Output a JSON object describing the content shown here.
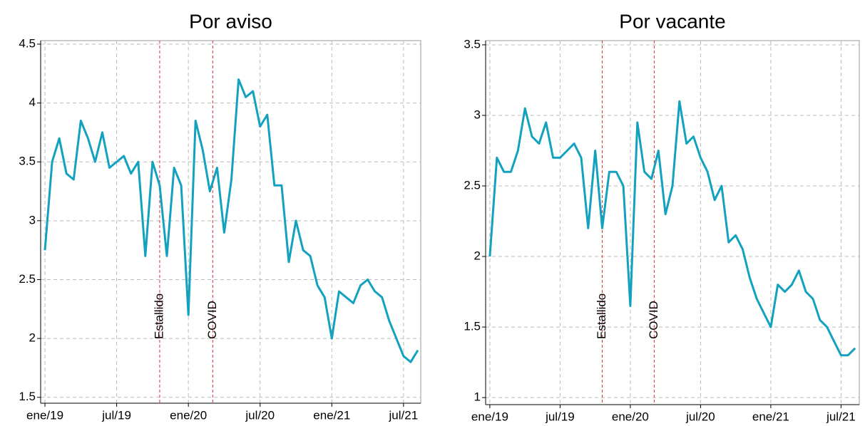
{
  "chart_data": [
    {
      "type": "line",
      "title": "Por aviso",
      "color": "#12a2bf",
      "grid": true,
      "x": [
        2019.0,
        2019.05,
        2019.1,
        2019.15,
        2019.2,
        2019.25,
        2019.3,
        2019.35,
        2019.4,
        2019.45,
        2019.5,
        2019.55,
        2019.6,
        2019.65,
        2019.7,
        2019.75,
        2019.8,
        2019.85,
        2019.9,
        2019.95,
        2020.0,
        2020.05,
        2020.1,
        2020.15,
        2020.2,
        2020.25,
        2020.3,
        2020.35,
        2020.4,
        2020.45,
        2020.5,
        2020.55,
        2020.6,
        2020.65,
        2020.7,
        2020.75,
        2020.8,
        2020.85,
        2020.9,
        2020.95,
        2021.0,
        2021.05,
        2021.1,
        2021.15,
        2021.2,
        2021.25,
        2021.3,
        2021.35,
        2021.4,
        2021.45,
        2021.5,
        2021.55,
        2021.6
      ],
      "values": [
        2.75,
        3.5,
        3.7,
        3.4,
        3.35,
        3.85,
        3.7,
        3.5,
        3.75,
        3.45,
        3.5,
        3.55,
        3.4,
        3.5,
        2.7,
        3.5,
        3.3,
        2.7,
        3.45,
        3.3,
        2.2,
        3.85,
        3.6,
        3.25,
        3.45,
        2.9,
        3.35,
        4.2,
        4.05,
        4.1,
        3.8,
        3.9,
        3.3,
        3.3,
        2.65,
        3.0,
        2.75,
        2.7,
        2.45,
        2.35,
        2.0,
        2.4,
        2.35,
        2.3,
        2.45,
        2.5,
        2.4,
        2.35,
        2.15,
        2.0,
        1.85,
        1.8,
        1.9
      ],
      "xlim": [
        2018.97,
        2021.62
      ],
      "xticks": [
        {
          "value": 2019,
          "label": "ene/19"
        },
        {
          "value": 2019.5,
          "label": "jul/19"
        },
        {
          "value": 2020,
          "label": "ene/20"
        },
        {
          "value": 2020.5,
          "label": "jul/20"
        },
        {
          "value": 2021,
          "label": "ene/21"
        },
        {
          "value": 2021.5,
          "label": "jul/21"
        }
      ],
      "ylim": [
        1.45,
        4.53
      ],
      "yticks": [
        1.5,
        2,
        2.5,
        3,
        3.5,
        4,
        4.5
      ],
      "annotations": [
        {
          "text": "Estallido",
          "x": 2019.8
        },
        {
          "text": "COVID",
          "x": 2020.17
        }
      ]
    },
    {
      "type": "line",
      "title": "Por vacante",
      "color": "#12a2bf",
      "grid": true,
      "x": [
        2019.0,
        2019.05,
        2019.1,
        2019.15,
        2019.2,
        2019.25,
        2019.3,
        2019.35,
        2019.4,
        2019.45,
        2019.5,
        2019.55,
        2019.6,
        2019.65,
        2019.7,
        2019.75,
        2019.8,
        2019.85,
        2019.9,
        2019.95,
        2020.0,
        2020.05,
        2020.1,
        2020.15,
        2020.2,
        2020.25,
        2020.3,
        2020.35,
        2020.4,
        2020.45,
        2020.5,
        2020.55,
        2020.6,
        2020.65,
        2020.7,
        2020.75,
        2020.8,
        2020.85,
        2020.9,
        2020.95,
        2021.0,
        2021.05,
        2021.1,
        2021.15,
        2021.2,
        2021.25,
        2021.3,
        2021.35,
        2021.4,
        2021.45,
        2021.5,
        2021.55,
        2021.6
      ],
      "values": [
        2.0,
        2.7,
        2.6,
        2.6,
        2.75,
        3.05,
        2.85,
        2.8,
        2.95,
        2.7,
        2.7,
        2.75,
        2.8,
        2.7,
        2.2,
        2.75,
        2.2,
        2.6,
        2.6,
        2.5,
        1.65,
        2.95,
        2.6,
        2.55,
        2.75,
        2.3,
        2.5,
        3.1,
        2.8,
        2.85,
        2.7,
        2.6,
        2.4,
        2.5,
        2.1,
        2.15,
        2.05,
        1.85,
        1.7,
        1.6,
        1.5,
        1.8,
        1.75,
        1.8,
        1.9,
        1.75,
        1.7,
        1.55,
        1.5,
        1.4,
        1.3,
        1.3,
        1.35
      ],
      "xlim": [
        2018.97,
        2021.63
      ],
      "xticks": [
        {
          "value": 2019,
          "label": "ene/19"
        },
        {
          "value": 2019.5,
          "label": "jul/19"
        },
        {
          "value": 2020,
          "label": "ene/20"
        },
        {
          "value": 2020.5,
          "label": "jul/20"
        },
        {
          "value": 2021,
          "label": "ene/21"
        },
        {
          "value": 2021.5,
          "label": "jul/21"
        }
      ],
      "ylim": [
        0.95,
        3.53
      ],
      "yticks": [
        1,
        1.5,
        2,
        2.5,
        3,
        3.5
      ],
      "annotations": [
        {
          "text": "Estallido",
          "x": 2019.8
        },
        {
          "text": "COVID",
          "x": 2020.17
        }
      ]
    }
  ]
}
